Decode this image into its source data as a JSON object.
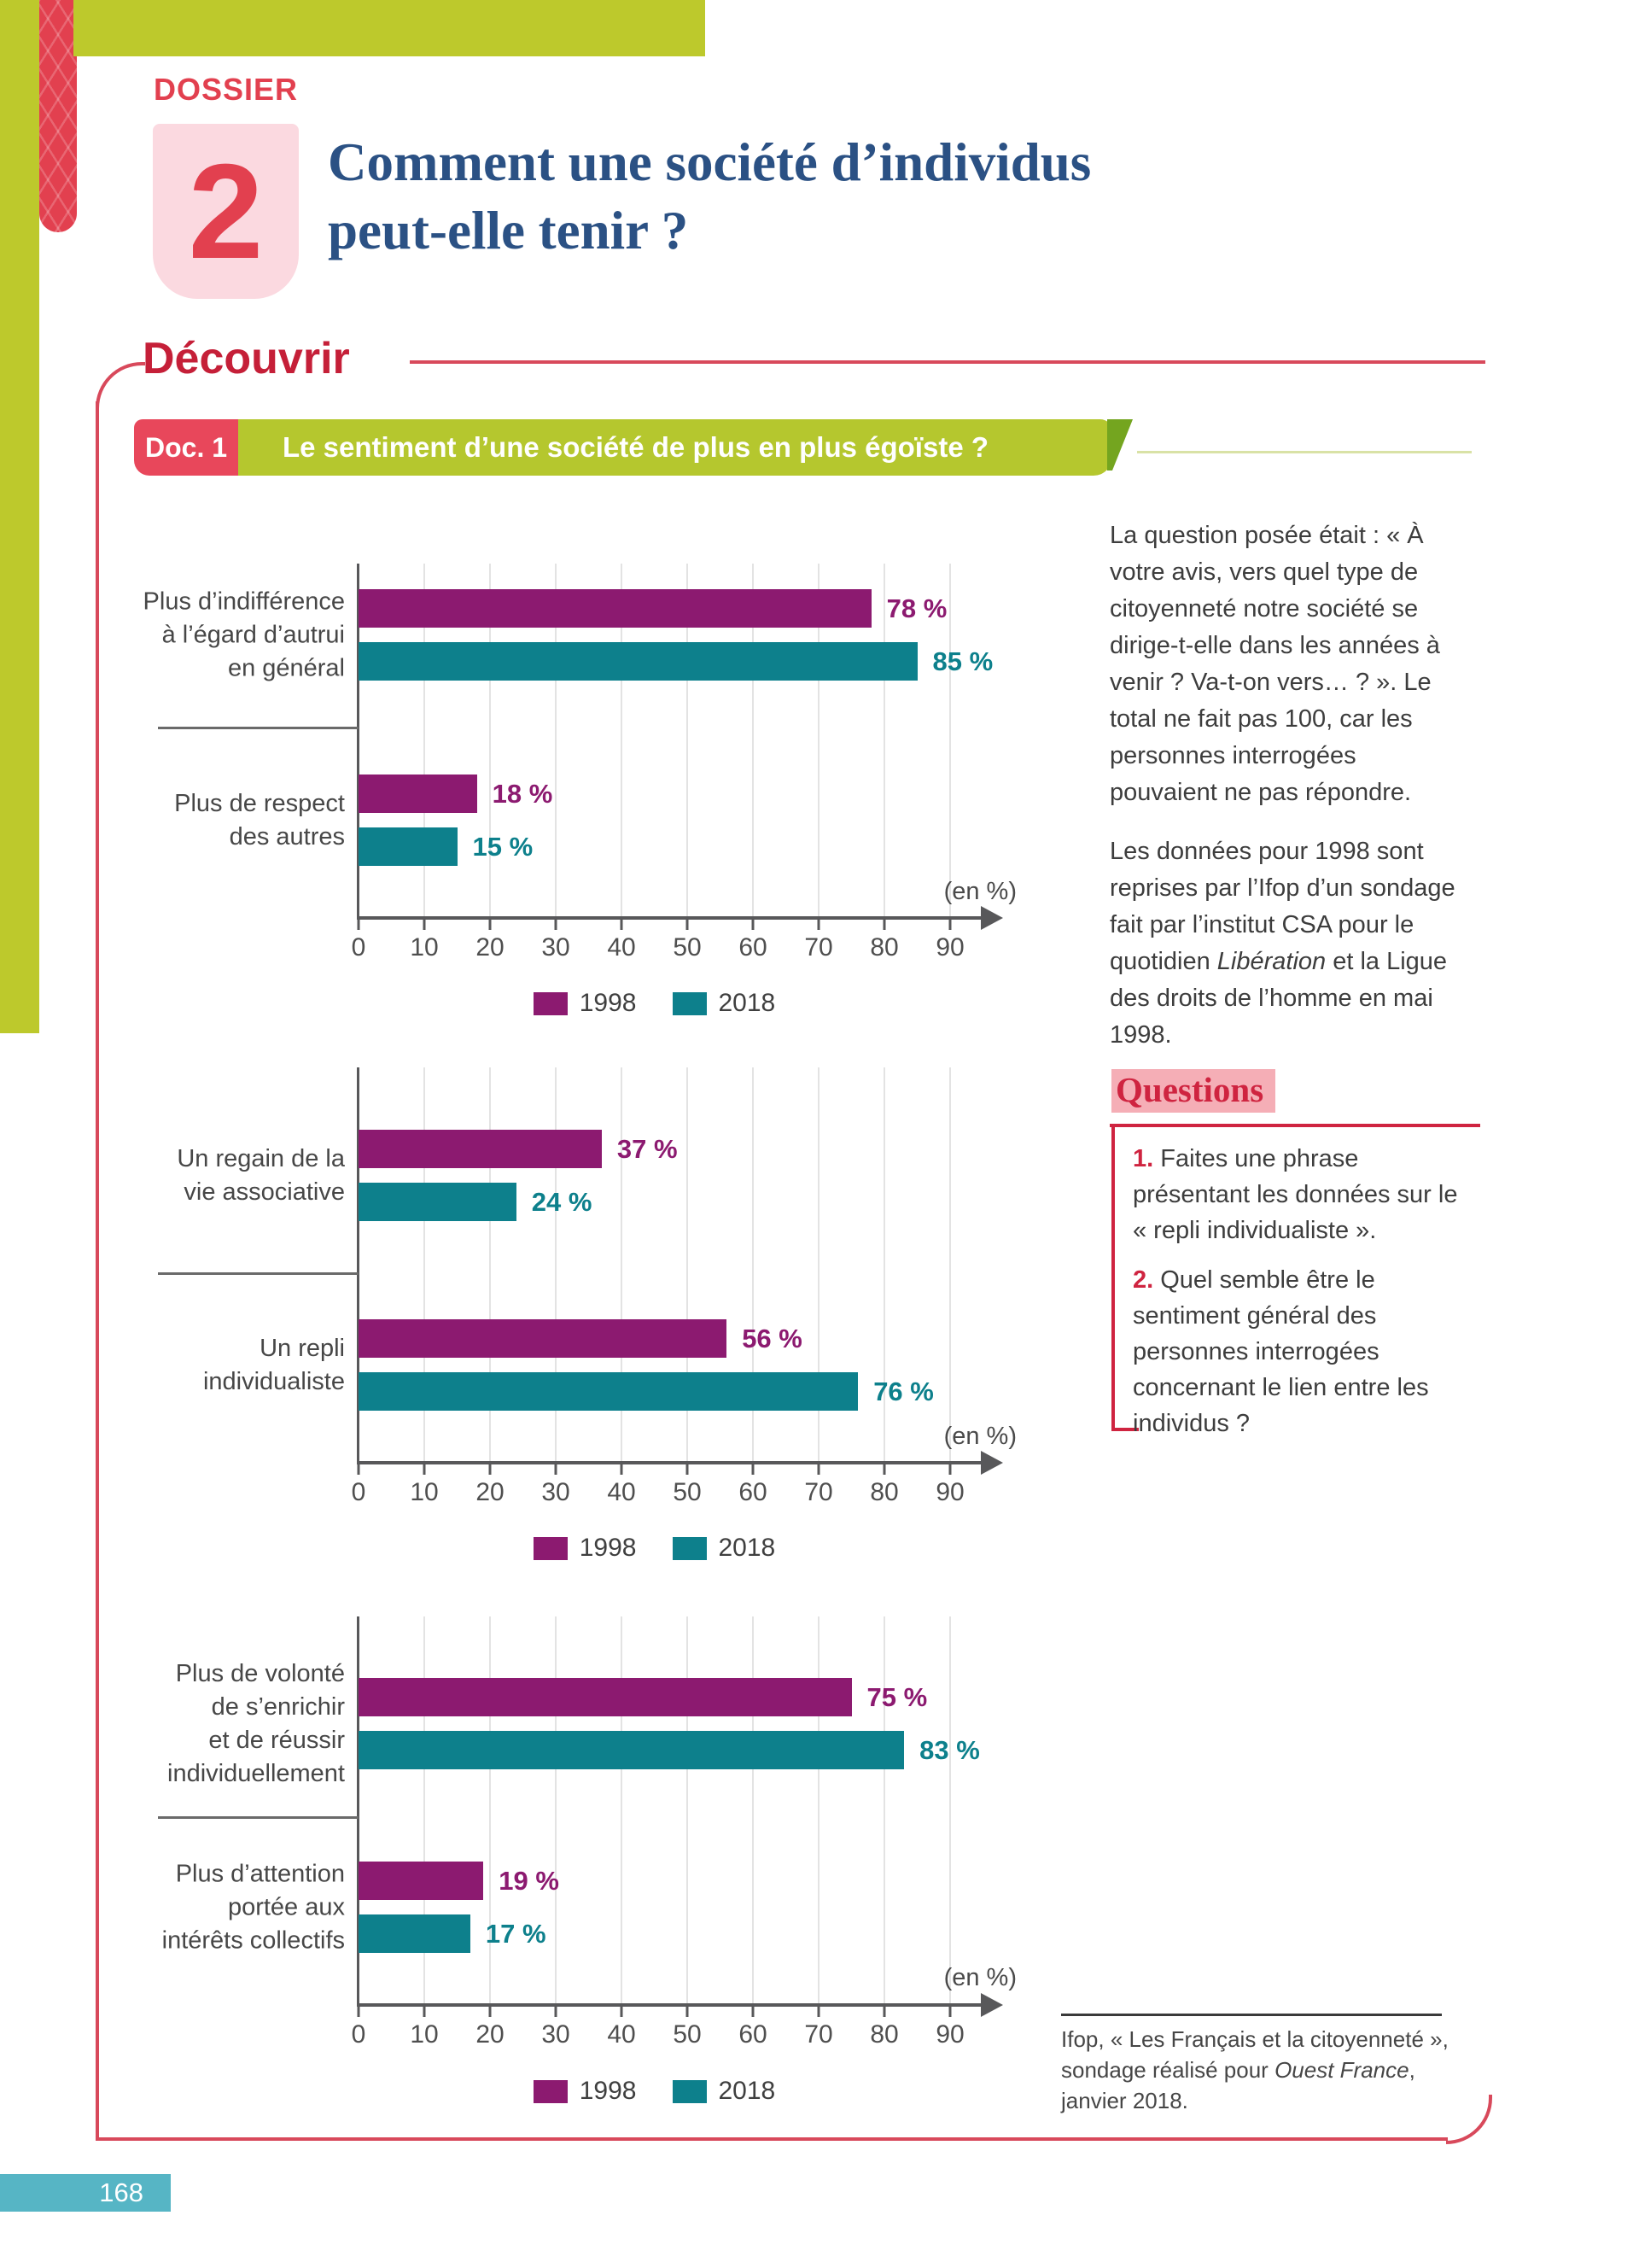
{
  "header": {
    "kicker": "DOSSIER",
    "dossier_number": "2",
    "title_line1": "Comment une société d’individus",
    "title_line2": "peut-elle tenir ?"
  },
  "section": {
    "title": "Découvrir"
  },
  "doc": {
    "label": "Doc. 1",
    "title": "Le sentiment d’une société de plus en plus égoïste ?"
  },
  "sidebar": {
    "para1": "La question posée était : « À votre avis, vers quel type de citoyenneté notre société se dirige-t-elle dans les années à venir ? Va-t-on vers… ? ». Le total ne fait pas 100, car les personnes interrogées pouvaient ne pas répondre.",
    "para2_pre": "Les données pour 1998 sont reprises par l’Ifop d’un sondage fait par l’institut CSA pour le quotidien ",
    "para2_italic": "Libération",
    "para2_post": " et la Ligue des droits de l’homme en mai 1998."
  },
  "questions": {
    "title": "Questions",
    "items": [
      {
        "num": "1.",
        "text": "Faites une phrase présentant les données sur le « repli individualiste »."
      },
      {
        "num": "2.",
        "text": "Quel semble être le sentiment général des personnes interrogées concernant le lien entre les individus ?"
      }
    ]
  },
  "source": {
    "line1": "Ifop, « Les Français et la citoyenneté »,",
    "line2_pre": "sondage réalisé pour ",
    "line2_italic": "Ouest France",
    "line2_post": ",",
    "line3": "janvier 2018."
  },
  "page": {
    "number": "168"
  },
  "colors": {
    "c1998": "#8c1a70",
    "c2018": "#0d808c"
  },
  "chart_data": [
    {
      "type": "bar",
      "orientation": "horizontal",
      "unit_label": "(en %)",
      "xlim": [
        0,
        90
      ],
      "xticks": [
        0,
        10,
        20,
        30,
        40,
        50,
        60,
        70,
        80,
        90
      ],
      "grid": true,
      "legend_position": "bottom",
      "categories": [
        "Plus d’indifférence à l’égard d’autrui en général",
        "Plus de respect des autres"
      ],
      "category_label_lines": [
        [
          "Plus d’indifférence",
          "à l’égard d’autrui",
          "en général"
        ],
        [
          "Plus de respect",
          "des autres"
        ]
      ],
      "series": [
        {
          "name": "1998",
          "values": [
            78,
            18
          ]
        },
        {
          "name": "2018",
          "values": [
            85,
            15
          ]
        }
      ]
    },
    {
      "type": "bar",
      "orientation": "horizontal",
      "unit_label": "(en %)",
      "xlim": [
        0,
        90
      ],
      "xticks": [
        0,
        10,
        20,
        30,
        40,
        50,
        60,
        70,
        80,
        90
      ],
      "grid": true,
      "legend_position": "bottom",
      "categories": [
        "Un regain de la vie associative",
        "Un repli individualiste"
      ],
      "category_label_lines": [
        [
          "Un regain de la",
          "vie associative"
        ],
        [
          "Un repli",
          "individualiste"
        ]
      ],
      "series": [
        {
          "name": "1998",
          "values": [
            37,
            56
          ]
        },
        {
          "name": "2018",
          "values": [
            24,
            76
          ]
        }
      ]
    },
    {
      "type": "bar",
      "orientation": "horizontal",
      "unit_label": "(en %)",
      "xlim": [
        0,
        90
      ],
      "xticks": [
        0,
        10,
        20,
        30,
        40,
        50,
        60,
        70,
        80,
        90
      ],
      "grid": true,
      "legend_position": "bottom",
      "categories": [
        "Plus de volonté de s’enrichir et de réussir individuellement",
        "Plus d’attention portée aux intérêts collectifs"
      ],
      "category_label_lines": [
        [
          "Plus de volonté",
          "de s’enrichir",
          "et de réussir",
          "individuellement"
        ],
        [
          "Plus d’attention",
          "portée aux",
          "intérêts collectifs"
        ]
      ],
      "series": [
        {
          "name": "1998",
          "values": [
            75,
            19
          ]
        },
        {
          "name": "2018",
          "values": [
            83,
            17
          ]
        }
      ]
    }
  ]
}
